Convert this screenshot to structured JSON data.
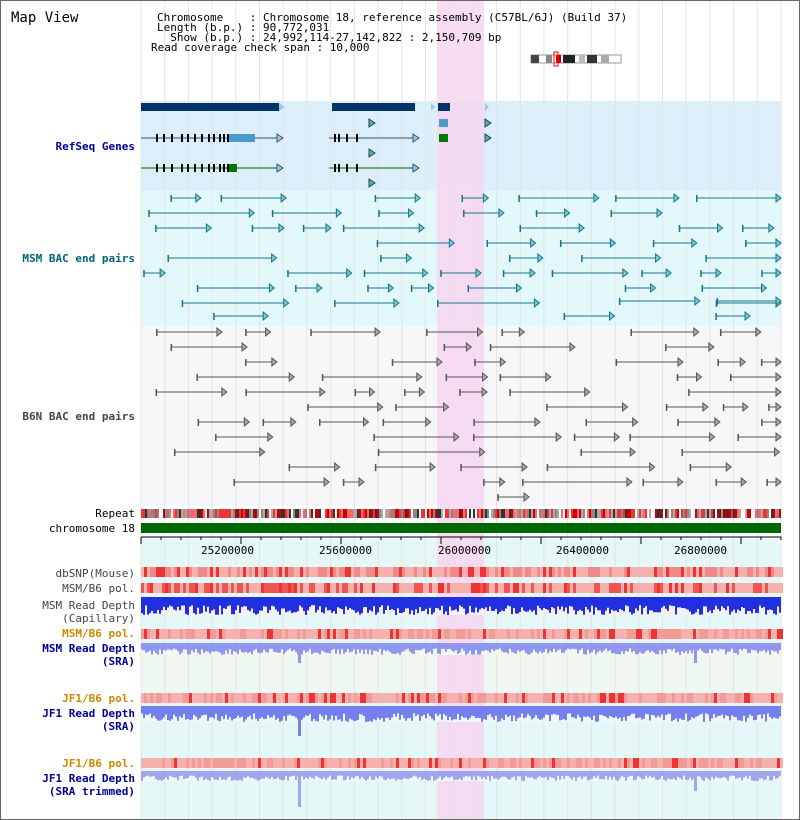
{
  "header": {
    "title": "Map View",
    "chromosome_line": "Chromosome    : Chromosome 18, reference assembly (C57BL/6J) (Build 37)",
    "length_line": "Length (b.p.) : 90,772,031",
    "show_line": "  Show (b.p.) : 24,992,114-27,142,822 : 2,150,709 bp",
    "coverage_line": "Read coverage check span : 10,000"
  },
  "tracks": {
    "refseq": "RefSeq Genes",
    "msm_bac": "MSM BAC end pairs",
    "b6n_bac": "B6N BAC end pairs",
    "repeat": "Repeat",
    "chromosome": "chromosome 18",
    "dbsnp": "dbSNP(Mouse)",
    "msm_b6_pol_1": "MSM/B6 pol.",
    "msm_depth_cap_1": "MSM Read Depth",
    "msm_depth_cap_2": "(Capillary)",
    "msm_b6_pol_2": "MSM/B6 pol.",
    "msm_depth_sra_1": "MSM Read Depth",
    "msm_depth_sra_2": "(SRA)",
    "jf1_b6_pol_1": "JF1/B6 pol.",
    "jf1_depth_sra_1": "JF1 Read Depth",
    "jf1_depth_sra_2": "(SRA)",
    "jf1_b6_pol_2": "JF1/B6 pol.",
    "jf1_depth_trim_1": "JF1 Read Depth",
    "jf1_depth_trim_2": "(SRA trimmed)"
  },
  "axis": {
    "ticks": [
      "25200000",
      "25600000",
      "26000000",
      "26400000",
      "26800000"
    ]
  },
  "colors": {
    "refseq_label": "#000099",
    "msm_bac_label": "#006677",
    "b6n_bac_label": "#444444",
    "orange_label": "#cc8800",
    "blue_label": "#000099",
    "highlight": "#f7d6f0",
    "chromosome_bar": "#006600"
  }
}
